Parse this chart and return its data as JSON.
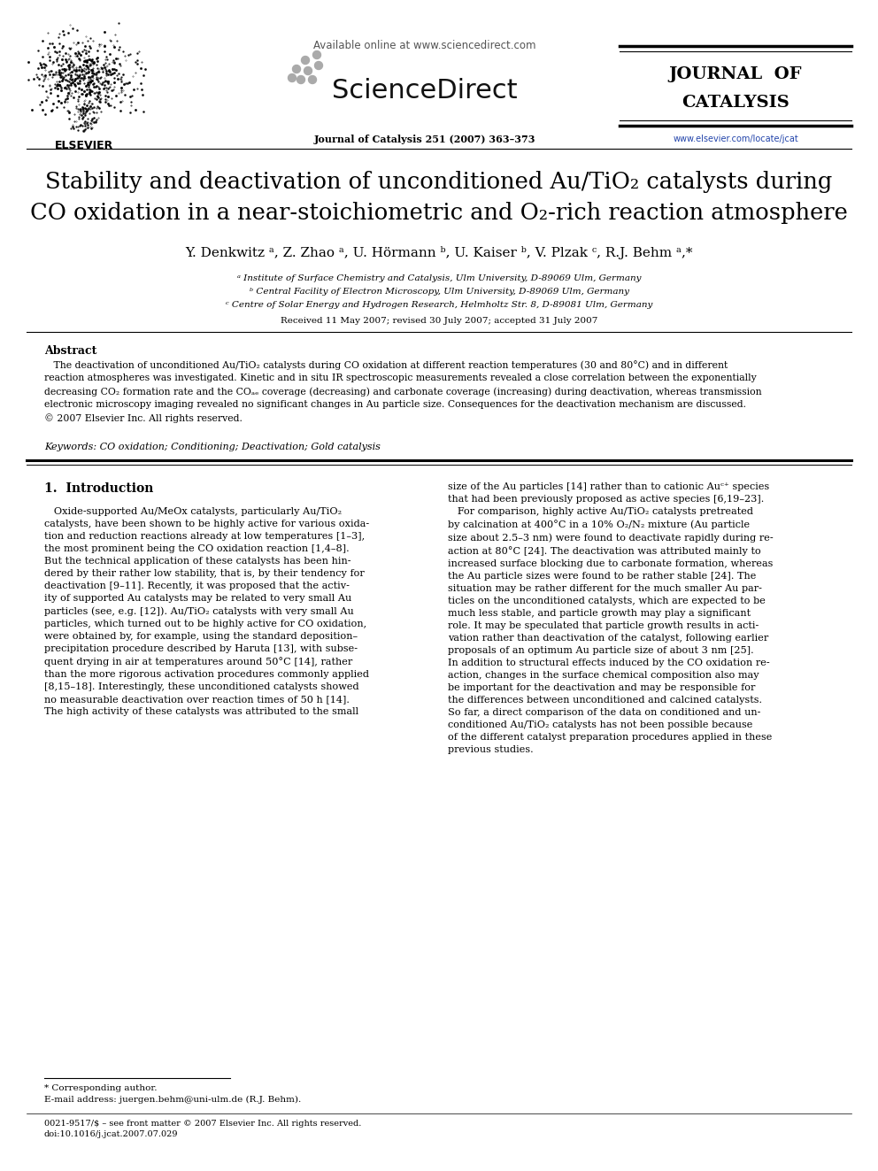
{
  "page_bg": "#ffffff",
  "available_online": "Available online at www.sciencedirect.com",
  "sciencedirect": "ScienceDirect",
  "journal_info": "Journal of Catalysis 251 (2007) 363–373",
  "journal_of_catalysis_line1": "JOURNAL  OF",
  "journal_of_catalysis_line2": "CATALYSIS",
  "elsevier_label": "ELSEVIER",
  "url": "www.elsevier.com/locate/jcat",
  "title_line1": "Stability and deactivation of unconditioned Au/TiO₂ catalysts during",
  "title_line2": "CO oxidation in a near-stoichiometric and O₂-rich reaction atmosphere",
  "authors": "Y. Denkwitz ᵃ, Z. Zhao ᵃ, U. Hörmann ᵇ, U. Kaiser ᵇ, V. Plzak ᶜ, R.J. Behm ᵃ,*",
  "affil_a": "ᵃ Institute of Surface Chemistry and Catalysis, Ulm University, D-89069 Ulm, Germany",
  "affil_b": "ᵇ Central Facility of Electron Microscopy, Ulm University, D-89069 Ulm, Germany",
  "affil_c": "ᶜ Centre of Solar Energy and Hydrogen Research, Helmholtz Str. 8, D-89081 Ulm, Germany",
  "received": "Received 11 May 2007; revised 30 July 2007; accepted 31 July 2007",
  "abstract_title": "Abstract",
  "abstract_body": "   The deactivation of unconditioned Au/TiO₂ catalysts during CO oxidation at different reaction temperatures (30 and 80°C) and in different\nreaction atmospheres was investigated. Kinetic and in situ IR spectroscopic measurements revealed a close correlation between the exponentially\ndecreasing CO₂ formation rate and the COₐₑ coverage (decreasing) and carbonate coverage (increasing) during deactivation, whereas transmission\nelectronic microscopy imaging revealed no significant changes in Au particle size. Consequences for the deactivation mechanism are discussed.\n© 2007 Elsevier Inc. All rights reserved.",
  "keywords": "Keywords: CO oxidation; Conditioning; Deactivation; Gold catalysis",
  "intro_heading": "1.  Introduction",
  "col1_text": "   Oxide-supported Au/MeOx catalysts, particularly Au/TiO₂\ncatalysts, have been shown to be highly active for various oxida-\ntion and reduction reactions already at low temperatures [1–3],\nthe most prominent being the CO oxidation reaction [1,4–8].\nBut the technical application of these catalysts has been hin-\ndered by their rather low stability, that is, by their tendency for\ndeactivation [9–11]. Recently, it was proposed that the activ-\nity of supported Au catalysts may be related to very small Au\nparticles (see, e.g. [12]). Au/TiO₂ catalysts with very small Au\nparticles, which turned out to be highly active for CO oxidation,\nwere obtained by, for example, using the standard deposition–\nprecipitation procedure described by Haruta [13], with subse-\nquent drying in air at temperatures around 50°C [14], rather\nthan the more rigorous activation procedures commonly applied\n[8,15–18]. Interestingly, these unconditioned catalysts showed\nno measurable deactivation over reaction times of 50 h [14].\nThe high activity of these catalysts was attributed to the small",
  "col2_text": "size of the Au particles [14] rather than to cationic Auᶜ⁺ species\nthat had been previously proposed as active species [6,19–23].\n   For comparison, highly active Au/TiO₂ catalysts pretreated\nby calcination at 400°C in a 10% O₂/N₂ mixture (Au particle\nsize about 2.5–3 nm) were found to deactivate rapidly during re-\naction at 80°C [24]. The deactivation was attributed mainly to\nincreased surface blocking due to carbonate formation, whereas\nthe Au particle sizes were found to be rather stable [24]. The\nsituation may be rather different for the much smaller Au par-\nticles on the unconditioned catalysts, which are expected to be\nmuch less stable, and particle growth may play a significant\nrole. It may be speculated that particle growth results in acti-\nvation rather than deactivation of the catalyst, following earlier\nproposals of an optimum Au particle size of about 3 nm [25].\nIn addition to structural effects induced by the CO oxidation re-\naction, changes in the surface chemical composition also may\nbe important for the deactivation and may be responsible for\nthe differences between unconditioned and calcined catalysts.\nSo far, a direct comparison of the data on conditioned and un-\nconditioned Au/TiO₂ catalysts has not been possible because\nof the different catalyst preparation procedures applied in these\nprevious studies.",
  "footer1": "* Corresponding author.",
  "footer2": "E-mail address: juergen.behm@uni-ulm.de (R.J. Behm).",
  "footer3": "0021-9517/$ – see front matter © 2007 Elsevier Inc. All rights reserved.",
  "footer4": "doi:10.1016/j.jcat.2007.07.029"
}
